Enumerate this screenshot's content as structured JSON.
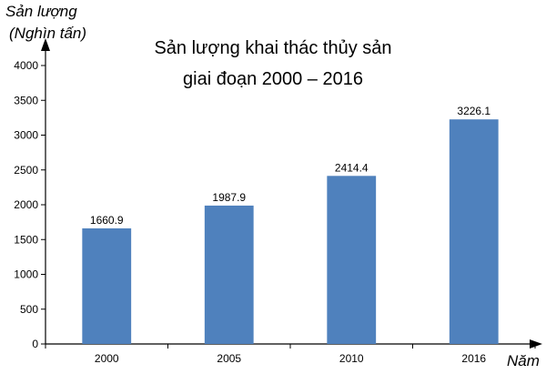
{
  "chart_data": {
    "type": "bar",
    "title_lines": [
      "Sản lượng khai thác thủy sản",
      "giai đoạn 2000 – 2016"
    ],
    "ylabel_lines": [
      "Sản lượng",
      "(Nghìn tấn)"
    ],
    "xlabel": "Năm",
    "categories": [
      "2000",
      "2005",
      "2010",
      "2016"
    ],
    "values": [
      1660.9,
      1987.9,
      2414.4,
      3226.1
    ],
    "data_labels": [
      "1660.9",
      "1987.9",
      "2414.4",
      "3226.1"
    ],
    "ylim": [
      0,
      4000
    ],
    "yticks": [
      0,
      500,
      1000,
      1500,
      2000,
      2500,
      3000,
      3500,
      4000
    ],
    "grid": false,
    "colors": {
      "bar": "#4F81BD",
      "axis": "#000000"
    }
  }
}
